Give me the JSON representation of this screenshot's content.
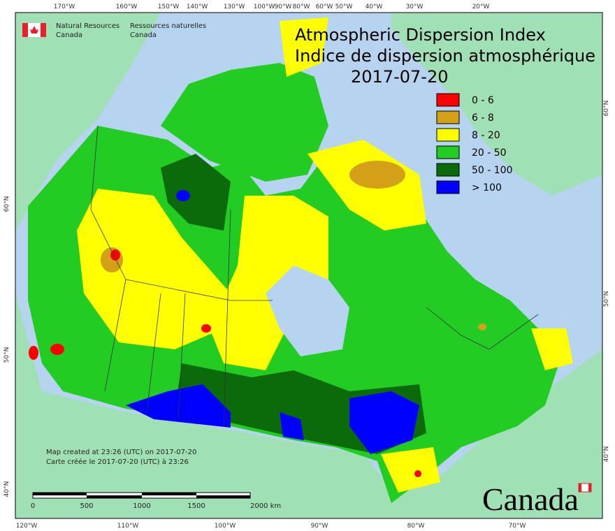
{
  "header": {
    "dept_en": [
      "Natural Resources",
      "Canada"
    ],
    "dept_fr": [
      "Ressources naturelles",
      "Canada"
    ],
    "title_en": "Atmospheric Dispersion Index",
    "title_fr": "Indice de dispersion atmosphérique",
    "date": "2017-07-20"
  },
  "legend": [
    {
      "label": "0 - 6",
      "color": "#ff0000"
    },
    {
      "label": "6 - 8",
      "color": "#d4a017"
    },
    {
      "label": "8 - 20",
      "color": "#ffff00"
    },
    {
      "label": "20 - 50",
      "color": "#22cc22"
    },
    {
      "label": "50 - 100",
      "color": "#0b6b0b"
    },
    {
      "label": "> 100",
      "color": "#0000ff"
    }
  ],
  "graticule": {
    "top": [
      "170°W",
      "160°W",
      "150°W",
      "140°W",
      "130°W",
      "100°W",
      "90°W",
      "80°W",
      "60°W",
      "50°W",
      "40°W",
      "30°W",
      "20°W"
    ],
    "bottom": [
      "120°W",
      "110°W",
      "100°W",
      "90°W",
      "80°W",
      "70°W"
    ],
    "left": [
      "60°N",
      "50°N",
      "40°N"
    ],
    "right": [
      "60°N",
      "50°N",
      "40°N"
    ]
  },
  "notes": [
    "Map created at 23:26 (UTC) on 2017-07-20",
    "Carte créée le 2017-07-20 (UTC) à 23:26"
  ],
  "scale": [
    "0",
    "500",
    "1000",
    "1500",
    "2000 km"
  ],
  "wordmark": "Canada"
}
